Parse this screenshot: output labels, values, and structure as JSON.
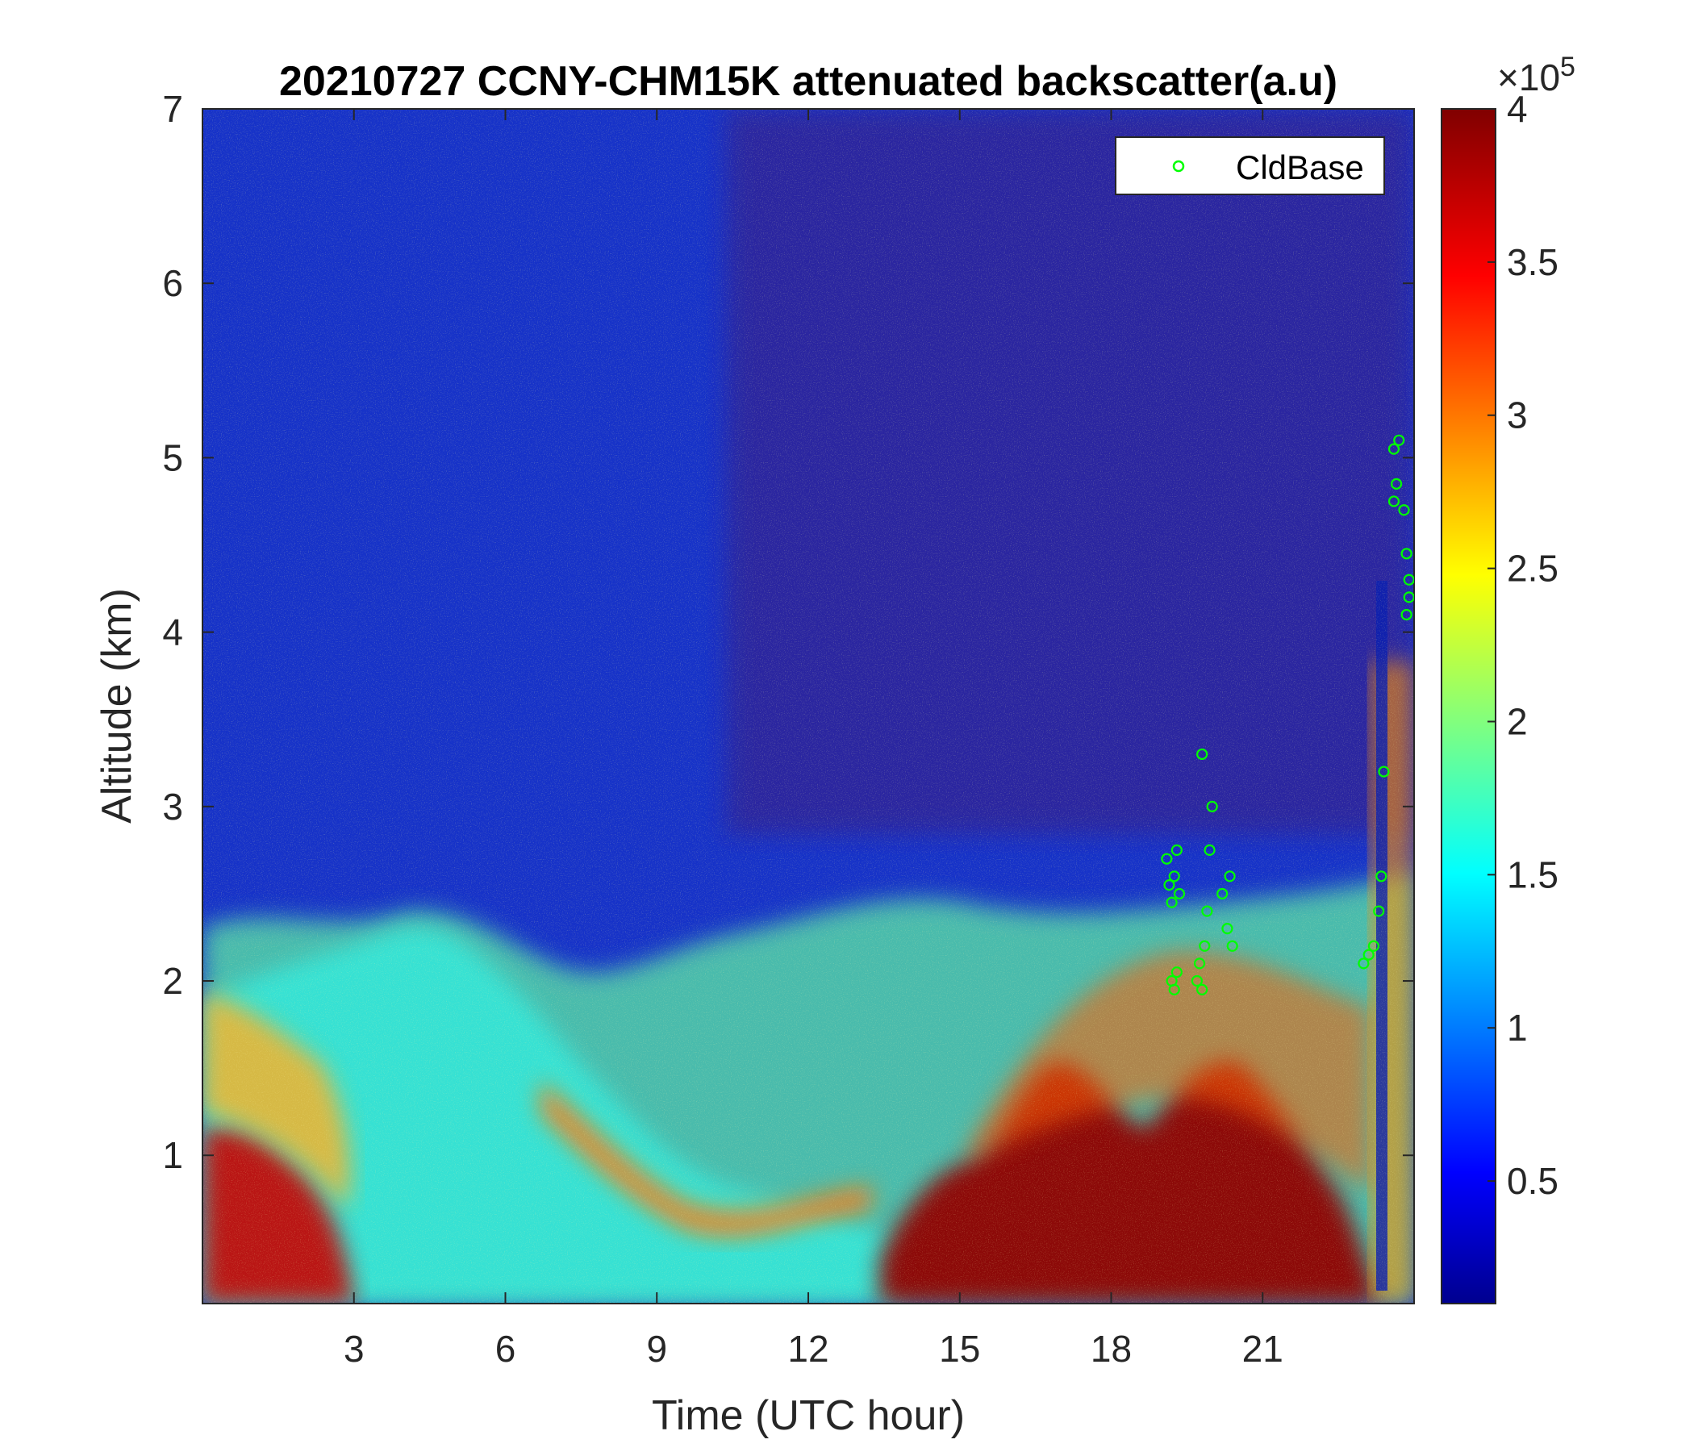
{
  "chart_data": {
    "type": "heatmap",
    "title": "20210727 CCNY-CHM15K attenuated backscatter(a.u)",
    "xlabel": "Time (UTC hour)",
    "ylabel": "Altitude (km)",
    "xlim": [
      0,
      24
    ],
    "ylim": [
      0.15,
      7
    ],
    "xticks": [
      3,
      6,
      9,
      12,
      15,
      18,
      21
    ],
    "yticks": [
      1,
      2,
      3,
      4,
      5,
      6,
      7
    ],
    "colorbar": {
      "range": [
        0.1,
        4
      ],
      "ticks": [
        0.5,
        1,
        1.5,
        2,
        2.5,
        3,
        3.5,
        4
      ],
      "multiplier": "×10",
      "exponent": "5",
      "colormap": "jet"
    },
    "grid": false,
    "legend": {
      "position": "top-right",
      "entries": [
        "CldBase"
      ]
    },
    "series": [
      {
        "name": "CldBase",
        "marker": "circle-open",
        "color": "#00ff00",
        "points": [
          [
            19.1,
            2.7
          ],
          [
            19.15,
            2.55
          ],
          [
            19.2,
            2.45
          ],
          [
            19.25,
            2.6
          ],
          [
            19.3,
            2.75
          ],
          [
            19.35,
            2.5
          ],
          [
            19.2,
            2.0
          ],
          [
            19.25,
            1.95
          ],
          [
            19.3,
            2.05
          ],
          [
            19.7,
            2.0
          ],
          [
            19.75,
            2.1
          ],
          [
            19.8,
            1.95
          ],
          [
            19.85,
            2.2
          ],
          [
            19.9,
            2.4
          ],
          [
            19.95,
            2.75
          ],
          [
            20.0,
            3.0
          ],
          [
            19.8,
            3.3
          ],
          [
            20.2,
            2.5
          ],
          [
            20.3,
            2.3
          ],
          [
            20.35,
            2.6
          ],
          [
            20.4,
            2.2
          ],
          [
            23.0,
            2.1
          ],
          [
            23.1,
            2.15
          ],
          [
            23.2,
            2.2
          ],
          [
            23.3,
            2.4
          ],
          [
            23.35,
            2.6
          ],
          [
            23.4,
            3.2
          ],
          [
            23.6,
            4.75
          ],
          [
            23.65,
            4.85
          ],
          [
            23.7,
            5.1
          ],
          [
            23.6,
            5.05
          ],
          [
            23.8,
            4.7
          ],
          [
            23.85,
            4.45
          ],
          [
            23.9,
            4.3
          ],
          [
            23.85,
            4.1
          ],
          [
            23.9,
            4.2
          ]
        ]
      }
    ]
  }
}
